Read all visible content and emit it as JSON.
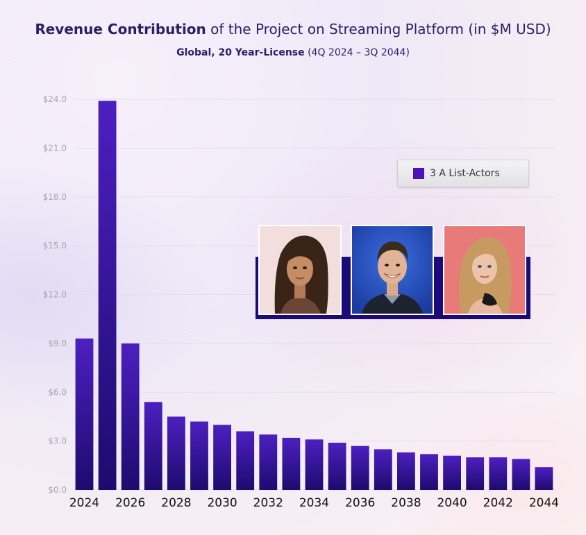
{
  "title": {
    "bold": "Revenue Contribution",
    "rest": " of the Project on Streaming Platform (in $M USD)"
  },
  "subtitle": {
    "bold": "Global, 20 Year-License",
    "rest": " (4Q 2024 – 3Q 2044)"
  },
  "legend": {
    "label": "3 A List-Actors"
  },
  "colors": {
    "bar_top": "#4d1fc0",
    "bar_bottom": "#1d0b6e",
    "legend_swatch": "#4b14b8"
  },
  "chart_data": {
    "type": "bar",
    "categories": [
      "2024",
      "2025",
      "2026",
      "2027",
      "2028",
      "2029",
      "2030",
      "2031",
      "2032",
      "2033",
      "2034",
      "2035",
      "2036",
      "2037",
      "2038",
      "2039",
      "2040",
      "2041",
      "2042",
      "2043",
      "2044"
    ],
    "series": [
      {
        "name": "3 A List-Actors",
        "values": [
          9.3,
          23.9,
          9.0,
          5.4,
          4.5,
          4.2,
          4.0,
          3.6,
          3.4,
          3.2,
          3.1,
          2.9,
          2.7,
          2.5,
          2.3,
          2.2,
          2.1,
          2.0,
          2.0,
          1.9,
          1.4
        ]
      }
    ],
    "x_tick_labels": [
      "2024",
      "2026",
      "2028",
      "2030",
      "2032",
      "2034",
      "2036",
      "2038",
      "2040",
      "2042",
      "2044"
    ],
    "y_tick_labels": [
      "$0.0",
      "$3.0",
      "$6.0",
      "$9.0",
      "$12.0",
      "$15.0",
      "$18.0",
      "$21.0",
      "$24.0"
    ],
    "y_ticks": [
      0,
      3,
      6,
      9,
      12,
      15,
      18,
      21,
      24
    ],
    "ylim": [
      0,
      24
    ],
    "grid": true,
    "legend_position": "top-right"
  },
  "actors": [
    "person-photo-1",
    "person-photo-2",
    "person-photo-3"
  ]
}
